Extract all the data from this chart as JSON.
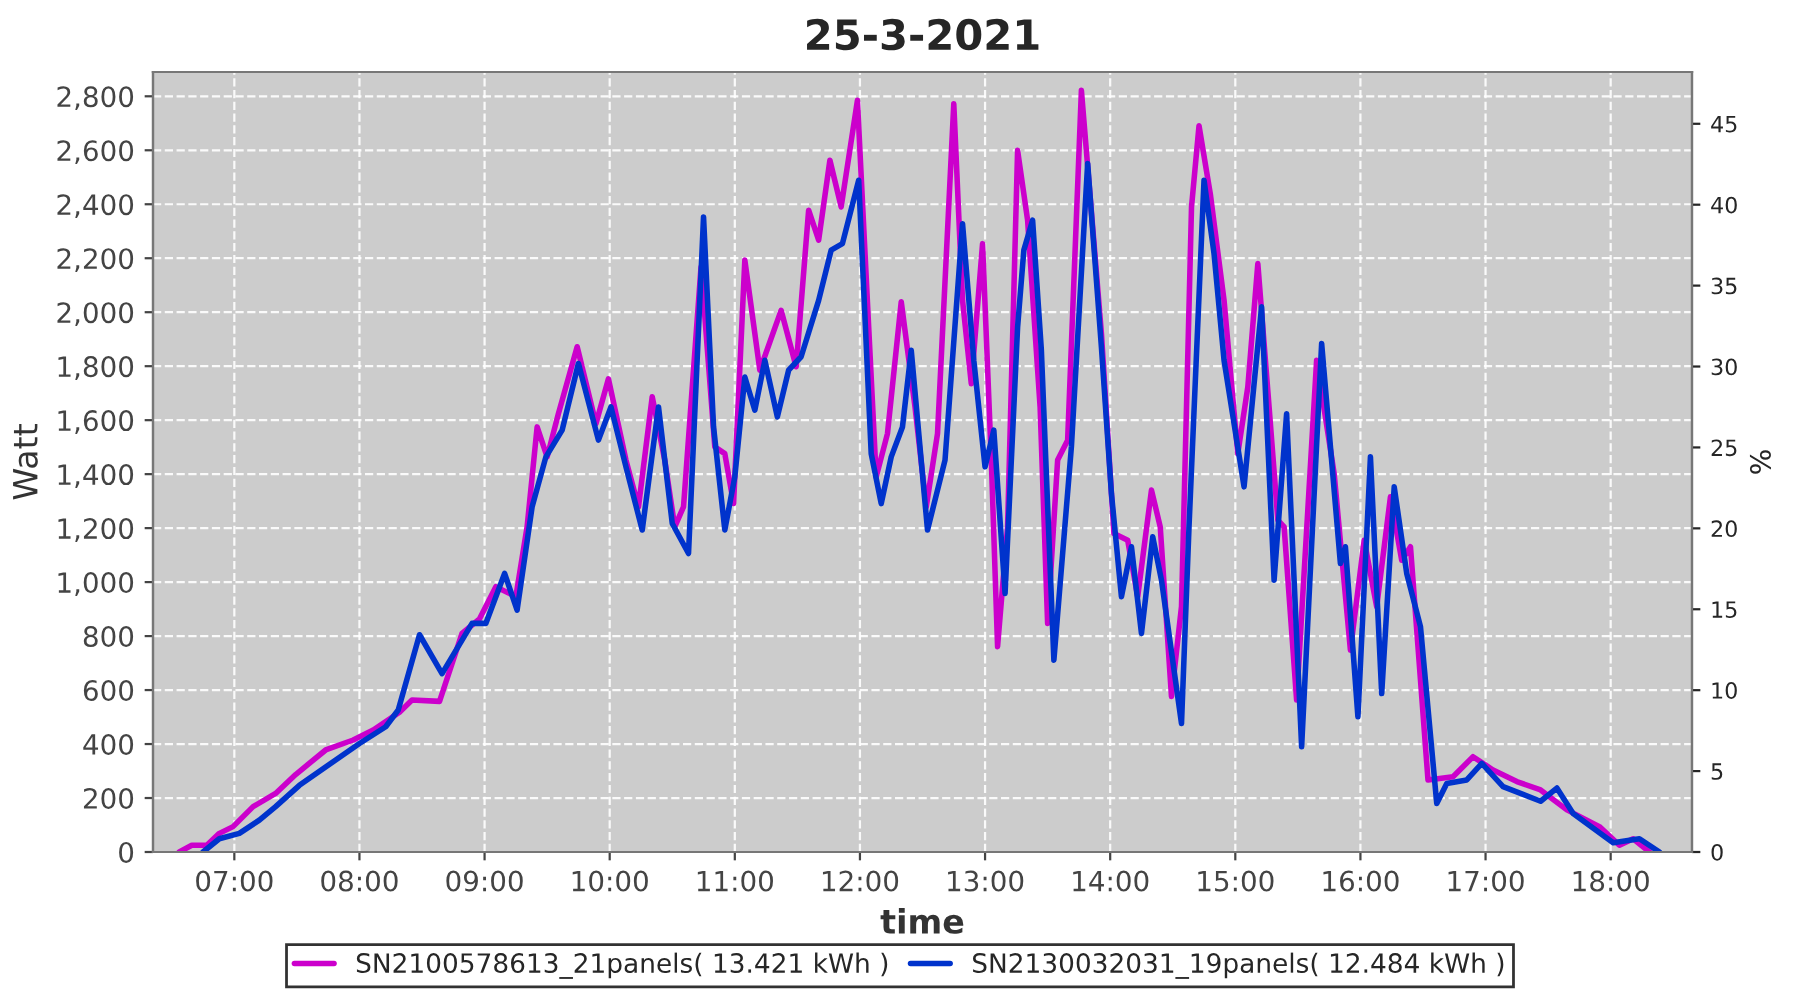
{
  "chart_data": {
    "type": "line",
    "title": "25-3-2021",
    "xlabel": "time",
    "ylabel": "Watt",
    "y2label": "%",
    "xlim": [
      6.35,
      18.65
    ],
    "ylim": [
      0,
      2890
    ],
    "y2lim": [
      0,
      48.2
    ],
    "xticks": [
      {
        "value": 7,
        "label": "07:00"
      },
      {
        "value": 8,
        "label": "08:00"
      },
      {
        "value": 9,
        "label": "09:00"
      },
      {
        "value": 10,
        "label": "10:00"
      },
      {
        "value": 11,
        "label": "11:00"
      },
      {
        "value": 12,
        "label": "12:00"
      },
      {
        "value": 13,
        "label": "13:00"
      },
      {
        "value": 14,
        "label": "14:00"
      },
      {
        "value": 15,
        "label": "15:00"
      },
      {
        "value": 16,
        "label": "16:00"
      },
      {
        "value": 17,
        "label": "17:00"
      },
      {
        "value": 18,
        "label": "18:00"
      }
    ],
    "yticks": [
      0,
      200,
      400,
      600,
      800,
      {
        "value": 1000,
        "label": "1,000"
      },
      {
        "value": 1200,
        "label": "1,200"
      },
      {
        "value": 1400,
        "label": "1,400"
      },
      {
        "value": 1600,
        "label": "1,600"
      },
      {
        "value": 1800,
        "label": "1,800"
      },
      {
        "value": 2000,
        "label": "2,000"
      },
      {
        "value": 2200,
        "label": "2,200"
      },
      {
        "value": 2400,
        "label": "2,400"
      },
      {
        "value": 2600,
        "label": "2,600"
      },
      {
        "value": 2800,
        "label": "2,800"
      }
    ],
    "y2ticks": [
      0,
      5,
      10,
      15,
      20,
      25,
      30,
      35,
      40,
      45
    ],
    "grid": true,
    "legend": "bottom",
    "line_style": "solid",
    "series": [
      {
        "name": "SN2100578613_21panels( 13.421 kWh )",
        "color": "#cc00cc",
        "x": [
          6.56,
          6.66,
          6.78,
          6.88,
          6.99,
          7.15,
          7.33,
          7.49,
          7.73,
          7.95,
          8.11,
          8.32,
          8.42,
          8.64,
          8.82,
          8.96,
          9.09,
          9.25,
          9.34,
          9.42,
          9.5,
          9.59,
          9.74,
          9.89,
          9.99,
          10.13,
          10.23,
          10.34,
          10.44,
          10.52,
          10.59,
          10.73,
          10.84,
          10.92,
          10.99,
          11.08,
          11.2,
          11.37,
          11.49,
          11.59,
          11.67,
          11.76,
          11.85,
          11.98,
          12.07,
          12.13,
          12.22,
          12.33,
          12.44,
          12.53,
          12.62,
          12.75,
          12.82,
          12.89,
          12.98,
          13.05,
          13.1,
          13.18,
          13.26,
          13.34,
          13.44,
          13.5,
          13.58,
          13.66,
          13.77,
          13.93,
          14.03,
          14.14,
          14.22,
          14.33,
          14.4,
          14.49,
          14.57,
          14.65,
          14.71,
          14.8,
          14.91,
          15.02,
          15.1,
          15.18,
          15.27,
          15.34,
          15.39,
          15.49,
          15.65,
          15.79,
          15.92,
          16.03,
          16.13,
          16.24,
          16.33,
          16.4,
          16.54,
          16.74,
          16.9,
          17.06,
          17.25,
          17.44,
          17.65,
          17.91,
          18.07,
          18.18,
          18.31
        ],
        "values": [
          0,
          25,
          25,
          69,
          94,
          168,
          217,
          287,
          378,
          415,
          452,
          518,
          563,
          558,
          810,
          864,
          983,
          946,
          1205,
          1575,
          1464,
          1624,
          1872,
          1587,
          1753,
          1452,
          1279,
          1687,
          1452,
          1205,
          1279,
          2168,
          1501,
          1476,
          1291,
          2193,
          1785,
          2007,
          1798,
          2378,
          2267,
          2563,
          2390,
          2785,
          1944,
          1390,
          1550,
          2039,
          1649,
          1279,
          1550,
          2772,
          2044,
          1735,
          2254,
          1452,
          761,
          1205,
          2600,
          2341,
          1649,
          847,
          1452,
          1526,
          2822,
          1921,
          1180,
          1155,
          946,
          1341,
          1205,
          576,
          909,
          2390,
          2691,
          2439,
          2044,
          1476,
          1723,
          2180,
          1649,
          1230,
          1205,
          563,
          1822,
          1402,
          748,
          1155,
          909,
          1316,
          1081,
          1131,
          267,
          279,
          353,
          304,
          261,
          230,
          156,
          94,
          25,
          49,
          0
        ]
      },
      {
        "name": "SN2130032031_19panels( 12.484 kWh )",
        "color": "#0033cc",
        "x": [
          6.75,
          6.88,
          7.04,
          7.2,
          7.33,
          7.52,
          7.81,
          8.0,
          8.21,
          8.31,
          8.48,
          8.66,
          8.9,
          9.01,
          9.16,
          9.26,
          9.38,
          9.49,
          9.62,
          9.75,
          9.91,
          10.01,
          10.13,
          10.26,
          10.39,
          10.5,
          10.63,
          10.75,
          10.83,
          10.92,
          11.0,
          11.08,
          11.16,
          11.24,
          11.34,
          11.43,
          11.53,
          11.67,
          11.77,
          11.86,
          11.99,
          12.09,
          12.17,
          12.25,
          12.34,
          12.41,
          12.54,
          12.68,
          12.82,
          12.91,
          13.0,
          13.07,
          13.16,
          13.26,
          13.31,
          13.38,
          13.45,
          13.55,
          13.69,
          13.82,
          13.93,
          14.01,
          14.09,
          14.17,
          14.25,
          14.34,
          14.41,
          14.57,
          14.63,
          14.75,
          14.83,
          14.91,
          15.07,
          15.21,
          15.31,
          15.41,
          15.53,
          15.69,
          15.84,
          15.88,
          15.98,
          16.08,
          16.17,
          16.27,
          16.37,
          16.48,
          16.61,
          16.69,
          16.85,
          16.97,
          17.14,
          17.44,
          17.57,
          17.7,
          18.02,
          18.23,
          18.39
        ],
        "values": [
          0,
          49,
          69,
          118,
          168,
          247,
          341,
          402,
          464,
          526,
          805,
          661,
          847,
          847,
          1032,
          896,
          1279,
          1464,
          1563,
          1810,
          1526,
          1649,
          1427,
          1193,
          1649,
          1217,
          1106,
          2353,
          1575,
          1193,
          1390,
          1760,
          1637,
          1822,
          1612,
          1785,
          1835,
          2044,
          2230,
          2254,
          2489,
          1476,
          1291,
          1464,
          1575,
          1859,
          1193,
          1452,
          2328,
          1822,
          1427,
          1563,
          958,
          1944,
          2230,
          2341,
          1859,
          711,
          1501,
          2551,
          1870,
          1328,
          946,
          1131,
          810,
          1168,
          1007,
          476,
          1205,
          2489,
          2217,
          1822,
          1353,
          2020,
          1007,
          1624,
          390,
          1884,
          1069,
          1131,
          501,
          1464,
          587,
          1353,
          1032,
          835,
          180,
          254,
          267,
          328,
          242,
          188,
          237,
          143,
          34,
          49,
          0
        ]
      }
    ]
  }
}
